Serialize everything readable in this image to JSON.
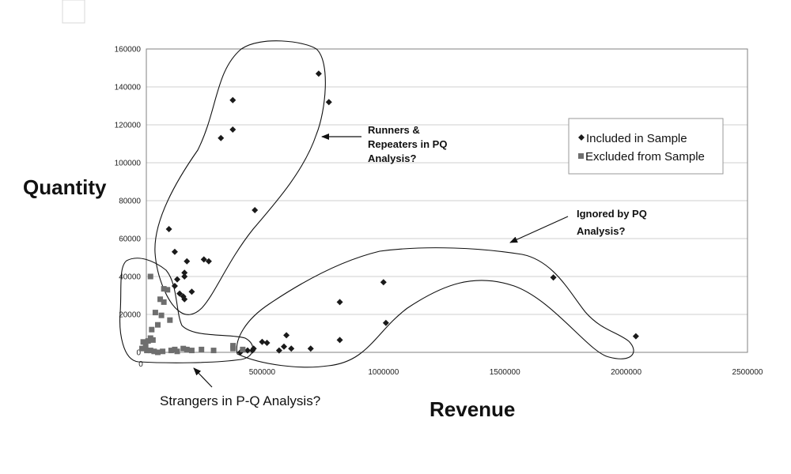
{
  "chart_data": {
    "type": "scatter",
    "xlabel": "Revenue",
    "ylabel": "Quantity",
    "xlim": [
      0,
      2500000
    ],
    "ylim": [
      0,
      160000
    ],
    "xticks": [
      "0",
      "500000",
      "1000000",
      "1500000",
      "2000000",
      "2500000"
    ],
    "yticks": [
      "0",
      "20000",
      "40000",
      "60000",
      "80000",
      "100000",
      "120000",
      "140000",
      "160000"
    ],
    "grid": "horizontal",
    "legend_position": "right",
    "series": [
      {
        "name": "Included in Sample",
        "marker": "diamond",
        "color": "#1a1a1a",
        "points": [
          [
            733000,
            147000
          ],
          [
            775000,
            132000
          ],
          [
            379000,
            133000
          ],
          [
            379000,
            117500
          ],
          [
            330000,
            113000
          ],
          [
            470000,
            75000
          ],
          [
            116000,
            65000
          ],
          [
            140000,
            53000
          ],
          [
            260000,
            49000
          ],
          [
            280000,
            48000
          ],
          [
            190000,
            48000
          ],
          [
            180000,
            42000
          ],
          [
            180000,
            40000
          ],
          [
            150000,
            38500
          ],
          [
            140000,
            35000
          ],
          [
            160000,
            31000
          ],
          [
            210000,
            32000
          ],
          [
            175000,
            29500
          ],
          [
            180000,
            28000
          ],
          [
            465000,
            2000
          ],
          [
            440000,
            1000
          ],
          [
            410000,
            0
          ],
          [
            460000,
            1000
          ],
          [
            500000,
            5500
          ],
          [
            520000,
            5000
          ],
          [
            600000,
            9000
          ],
          [
            590000,
            3000
          ],
          [
            620000,
            2000
          ],
          [
            700000,
            2000
          ],
          [
            570000,
            1000
          ],
          [
            820000,
            26500
          ],
          [
            820000,
            6500
          ],
          [
            1000000,
            37000
          ],
          [
            1010000,
            15500
          ],
          [
            1700000,
            39500
          ],
          [
            2040000,
            8500
          ]
        ]
      },
      {
        "name": "Excluded from Sample",
        "marker": "square",
        "color": "#6e6e6e",
        "points": [
          [
            40000,
            40000
          ],
          [
            95000,
            33500
          ],
          [
            110000,
            33000
          ],
          [
            80000,
            28000
          ],
          [
            95000,
            26500
          ],
          [
            120000,
            17000
          ],
          [
            60000,
            21000
          ],
          [
            85000,
            19500
          ],
          [
            70000,
            14500
          ],
          [
            45000,
            12000
          ],
          [
            10000,
            5500
          ],
          [
            30000,
            6000
          ],
          [
            40000,
            7500
          ],
          [
            50000,
            6500
          ],
          [
            20000,
            3500
          ],
          [
            5000,
            2000
          ],
          [
            25000,
            1000
          ],
          [
            40000,
            1000
          ],
          [
            55000,
            500
          ],
          [
            70000,
            0
          ],
          [
            90000,
            500
          ],
          [
            125000,
            1000
          ],
          [
            140000,
            1500
          ],
          [
            150000,
            500
          ],
          [
            175000,
            2000
          ],
          [
            190000,
            1500
          ],
          [
            210000,
            1000
          ],
          [
            250000,
            1500
          ],
          [
            300000,
            1000
          ],
          [
            380000,
            3500
          ],
          [
            380000,
            2000
          ],
          [
            420000,
            1500
          ]
        ]
      }
    ],
    "annotations": [
      {
        "lines": [
          "Runners &",
          "Repeaters in PQ",
          "Analysis?"
        ],
        "style": "bold"
      },
      {
        "lines": [
          "Ignored by PQ",
          "Analysis?"
        ],
        "style": "bold"
      },
      {
        "lines": [
          "Strangers in P-Q Analysis?"
        ],
        "style": "plain"
      }
    ]
  }
}
